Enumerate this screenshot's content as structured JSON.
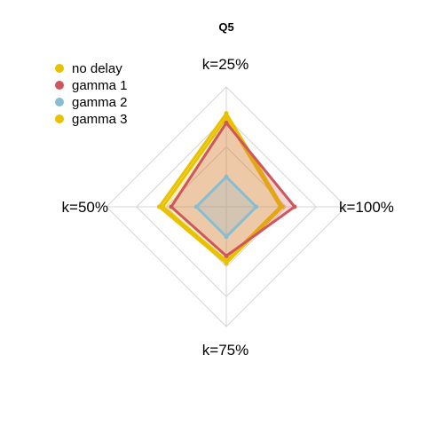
{
  "chart_data": {
    "type": "radar",
    "title": "Q5",
    "axes": [
      "k=25%",
      "k=100%",
      "k=75%",
      "k=50%"
    ],
    "range": [
      0,
      1
    ],
    "grid_levels": [
      0.25,
      0.5,
      0.75,
      1.0
    ],
    "legend_position": "top-left",
    "series": [
      {
        "name": "no delay",
        "color": "#E8C100",
        "values": [
          0.78,
          0.47,
          0.47,
          0.56
        ],
        "fill": false
      },
      {
        "name": "gamma 1",
        "color": "#D0565E",
        "values": [
          0.7,
          0.57,
          0.41,
          0.46
        ],
        "fill": true
      },
      {
        "name": "gamma 2",
        "color": "#86BDD2",
        "values": [
          0.25,
          0.25,
          0.25,
          0.25
        ],
        "fill": true
      },
      {
        "name": "gamma 3",
        "color": "#E8C100",
        "values": [
          0.74,
          0.45,
          0.45,
          0.53
        ],
        "fill": true
      }
    ]
  }
}
